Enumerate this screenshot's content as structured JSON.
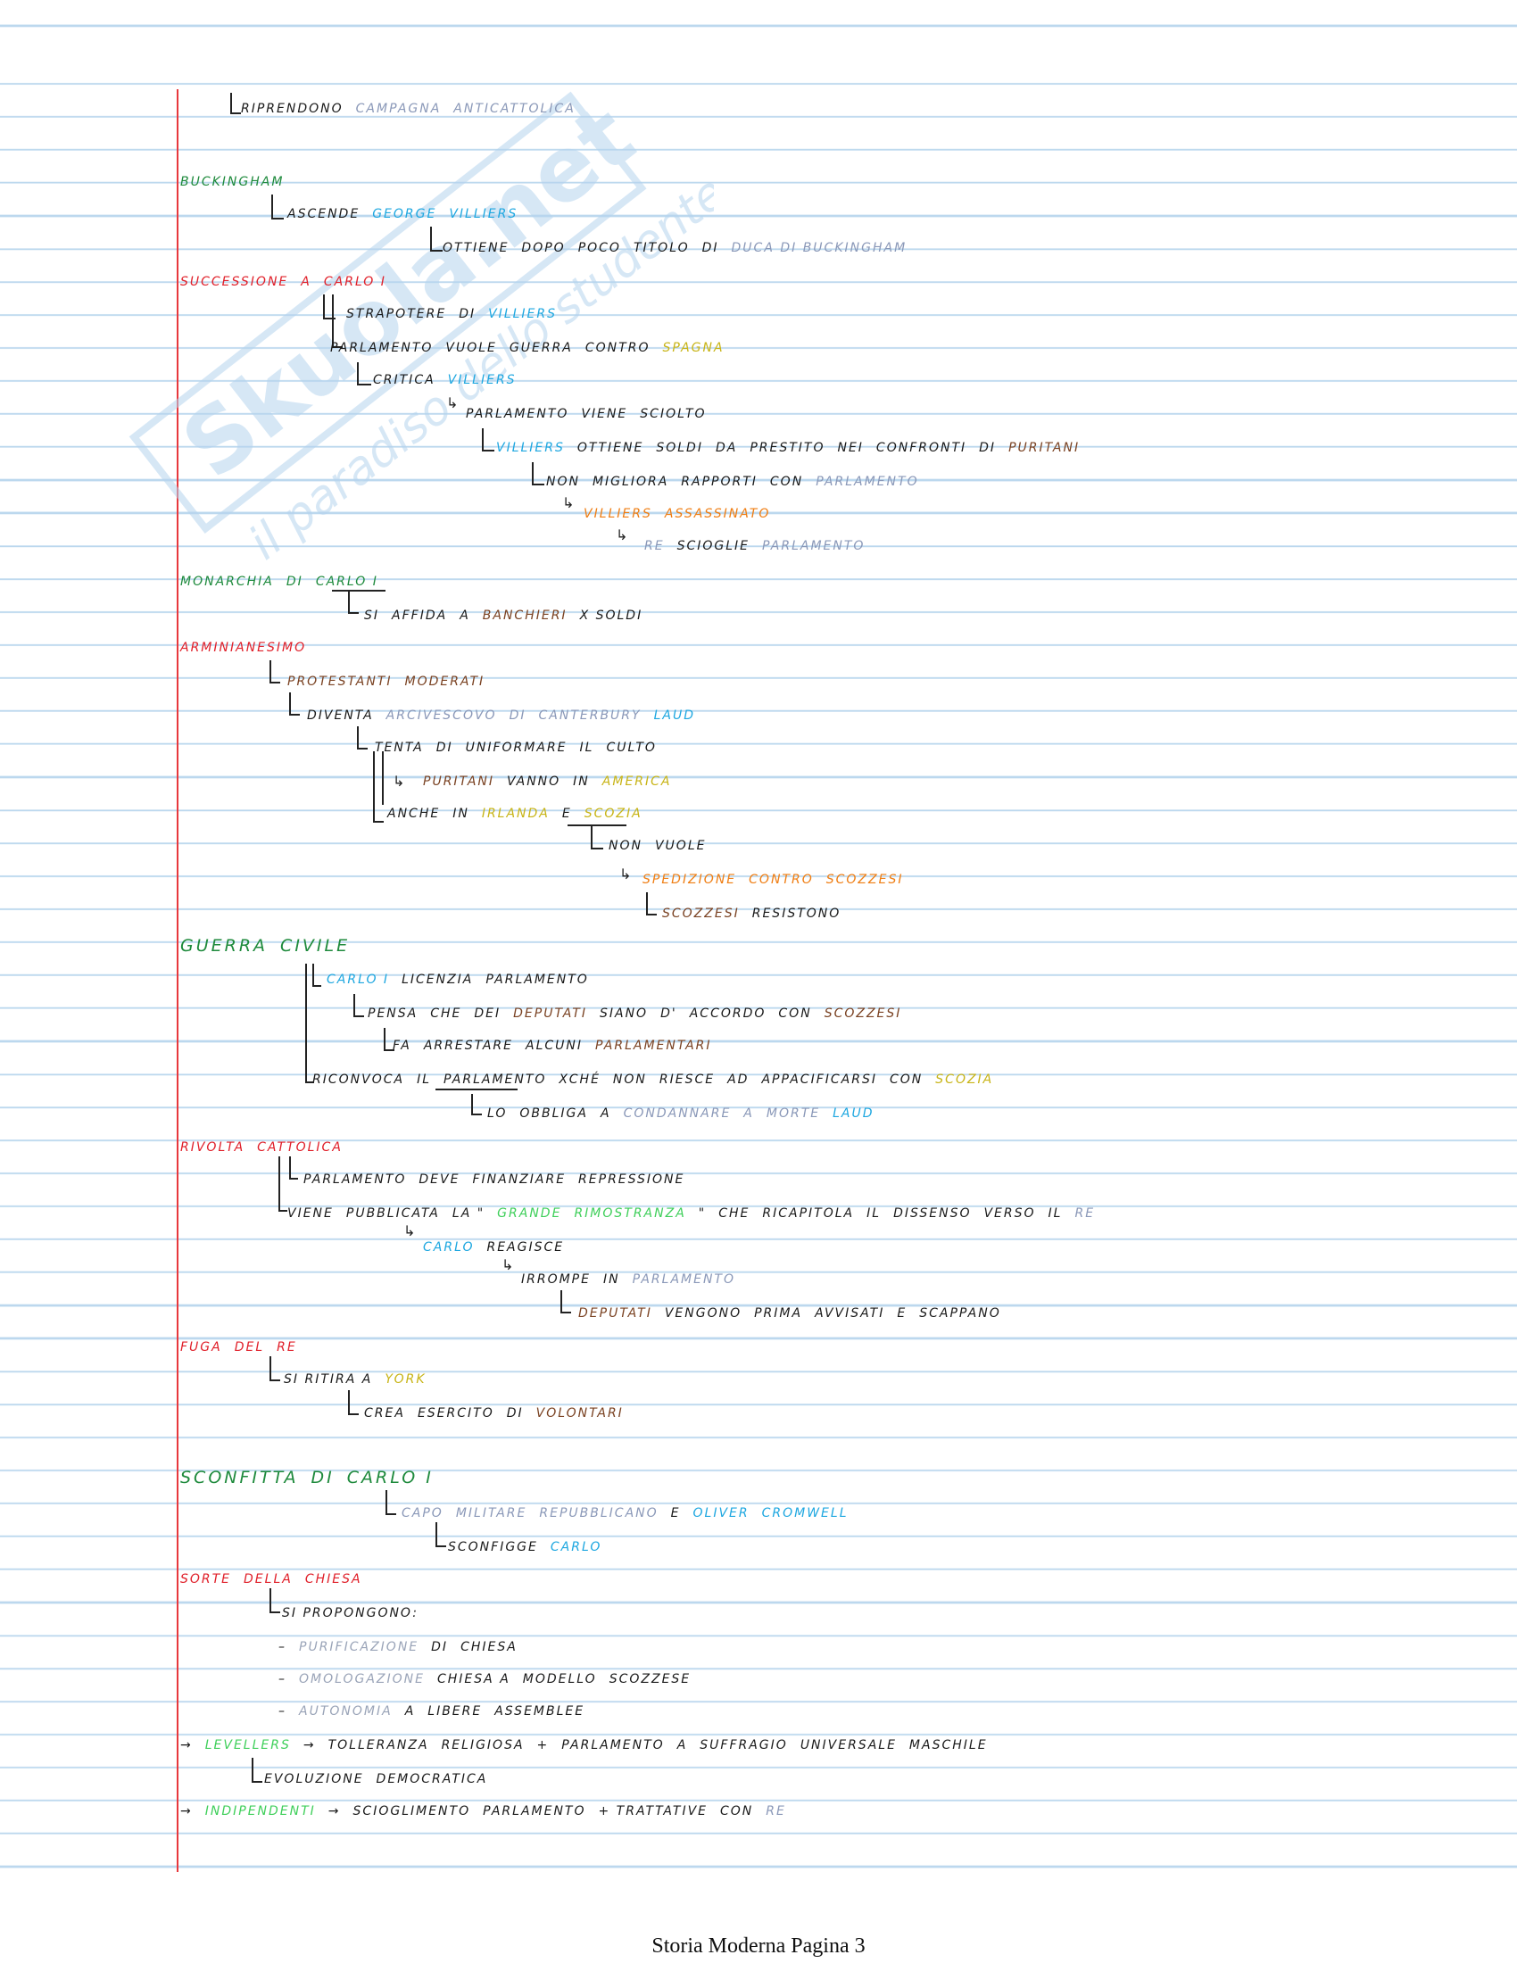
{
  "footer": {
    "text": "Storia Moderna Pagina 3"
  },
  "watermark": {
    "brand": "Skuola.net",
    "tagline": "il paradiso dello studente"
  },
  "colors": {
    "margin": "#e8383d",
    "rule": "#bcd8ee",
    "black": "#1a1a1a",
    "green": "#1e8a3c",
    "red": "#e0202a",
    "cyan": "#1ea7e0",
    "grey": "#8a98b8",
    "orange": "#ef7d12",
    "brown": "#7a4222",
    "yellow": "#c8b416",
    "lightgreen": "#3fcf5a",
    "darkgrey": "#9aa4b8",
    "watermark": "#b5d4ee"
  },
  "lines": [
    {
      "parts": [
        {
          "t": "RIPRENDONO",
          "c": "black"
        },
        {
          "t": "CAMPAGNA",
          "c": "grey"
        },
        {
          "t": "ANTICATTOLICA",
          "c": "grey"
        }
      ]
    },
    {
      "parts": [
        {
          "t": "BUCKINGHAM",
          "c": "green"
        }
      ]
    },
    {
      "parts": [
        {
          "t": "ASCENDE",
          "c": "black"
        },
        {
          "t": "GEORGE",
          "c": "cyan"
        },
        {
          "t": "VILLIERS",
          "c": "cyan"
        }
      ]
    },
    {
      "parts": [
        {
          "t": "OTTIENE",
          "c": "black"
        },
        {
          "t": "DOPO",
          "c": "black"
        },
        {
          "t": "POCO",
          "c": "black"
        },
        {
          "t": "TITOLO",
          "c": "black"
        },
        {
          "t": "DI",
          "c": "black"
        },
        {
          "t": "DUCA DI BUCKINGHAM",
          "c": "grey"
        }
      ]
    },
    {
      "parts": [
        {
          "t": "SUCCESSIONE",
          "c": "red"
        },
        {
          "t": "A",
          "c": "red"
        },
        {
          "t": "CARLO I",
          "c": "red"
        }
      ]
    },
    {
      "parts": [
        {
          "t": "STRAPOTERE",
          "c": "black"
        },
        {
          "t": "DI",
          "c": "black"
        },
        {
          "t": "VILLIERS",
          "c": "cyan"
        }
      ]
    },
    {
      "parts": [
        {
          "t": "PARLAMENTO",
          "c": "black"
        },
        {
          "t": "VUOLE",
          "c": "black"
        },
        {
          "t": "GUERRA",
          "c": "black"
        },
        {
          "t": "CONTRO",
          "c": "black"
        },
        {
          "t": "SPAGNA",
          "c": "yellow"
        }
      ]
    },
    {
      "parts": [
        {
          "t": "CRITICA",
          "c": "black"
        },
        {
          "t": "VILLIERS",
          "c": "cyan"
        }
      ]
    },
    {
      "parts": [
        {
          "t": "PARLAMENTO",
          "c": "black"
        },
        {
          "t": "VIENE",
          "c": "black"
        },
        {
          "t": "SCIOLTO",
          "c": "black"
        }
      ]
    },
    {
      "parts": [
        {
          "t": "VILLIERS",
          "c": "cyan"
        },
        {
          "t": "OTTIENE",
          "c": "black"
        },
        {
          "t": "SOLDI",
          "c": "black"
        },
        {
          "t": "DA",
          "c": "black"
        },
        {
          "t": "PRESTITO",
          "c": "black"
        },
        {
          "t": "NEI",
          "c": "black"
        },
        {
          "t": "CONFRONTI",
          "c": "black"
        },
        {
          "t": "DI",
          "c": "black"
        },
        {
          "t": "PURITANI",
          "c": "brown"
        }
      ]
    },
    {
      "parts": [
        {
          "t": "NON",
          "c": "black"
        },
        {
          "t": "MIGLIORA",
          "c": "black"
        },
        {
          "t": "RAPPORTI",
          "c": "black"
        },
        {
          "t": "CON",
          "c": "black"
        },
        {
          "t": "PARLAMENTO",
          "c": "grey"
        }
      ]
    },
    {
      "parts": [
        {
          "t": "VILLIERS",
          "c": "orange"
        },
        {
          "t": "ASSASSINATO",
          "c": "orange"
        }
      ]
    },
    {
      "parts": [
        {
          "t": "RE",
          "c": "grey"
        },
        {
          "t": "SCIOGLIE",
          "c": "black"
        },
        {
          "t": "PARLAMENTO",
          "c": "grey"
        }
      ]
    },
    {
      "parts": [
        {
          "t": "MONARCHIA",
          "c": "green"
        },
        {
          "t": "DI",
          "c": "green"
        },
        {
          "t": "CARLO I",
          "c": "green"
        }
      ]
    },
    {
      "parts": [
        {
          "t": "SI",
          "c": "black"
        },
        {
          "t": "AFFIDA",
          "c": "black"
        },
        {
          "t": "A",
          "c": "black"
        },
        {
          "t": "BANCHIERI",
          "c": "brown"
        },
        {
          "t": "X SOLDI",
          "c": "black"
        }
      ]
    },
    {
      "parts": [
        {
          "t": "ARMINIANESIMO",
          "c": "red"
        }
      ]
    },
    {
      "parts": [
        {
          "t": "PROTESTANTI",
          "c": "brown"
        },
        {
          "t": "MODERATI",
          "c": "brown"
        }
      ]
    },
    {
      "parts": [
        {
          "t": "DIVENTA",
          "c": "black"
        },
        {
          "t": "ARCIVESCOVO",
          "c": "grey"
        },
        {
          "t": "DI",
          "c": "grey"
        },
        {
          "t": "CANTERBURY",
          "c": "grey"
        },
        {
          "t": "LAUD",
          "c": "cyan"
        }
      ]
    },
    {
      "parts": [
        {
          "t": "TENTA",
          "c": "black"
        },
        {
          "t": "DI",
          "c": "black"
        },
        {
          "t": "UNIFORMARE",
          "c": "black"
        },
        {
          "t": "IL",
          "c": "black"
        },
        {
          "t": "CULTO",
          "c": "black"
        }
      ]
    },
    {
      "parts": [
        {
          "t": "PURITANI",
          "c": "brown"
        },
        {
          "t": "VANNO",
          "c": "black"
        },
        {
          "t": "IN",
          "c": "black"
        },
        {
          "t": "AMERICA",
          "c": "yellow"
        }
      ]
    },
    {
      "parts": [
        {
          "t": "ANCHE",
          "c": "black"
        },
        {
          "t": "IN",
          "c": "black"
        },
        {
          "t": "IRLANDA",
          "c": "yellow"
        },
        {
          "t": "E",
          "c": "black"
        },
        {
          "t": "SCOZIA",
          "c": "yellow"
        }
      ]
    },
    {
      "parts": [
        {
          "t": "NON",
          "c": "black"
        },
        {
          "t": "VUOLE",
          "c": "black"
        }
      ]
    },
    {
      "parts": [
        {
          "t": "SPEDIZIONE",
          "c": "orange"
        },
        {
          "t": "CONTRO",
          "c": "orange"
        },
        {
          "t": "SCOZZESI",
          "c": "orange"
        }
      ]
    },
    {
      "parts": [
        {
          "t": "SCOZZESI",
          "c": "brown"
        },
        {
          "t": "RESISTONO",
          "c": "black"
        }
      ]
    },
    {
      "parts": [
        {
          "t": "GUERRA",
          "c": "green"
        },
        {
          "t": "CIVILE",
          "c": "green"
        }
      ]
    },
    {
      "parts": [
        {
          "t": "CARLO I",
          "c": "cyan"
        },
        {
          "t": "LICENZIA",
          "c": "black"
        },
        {
          "t": "PARLAMENTO",
          "c": "black"
        }
      ]
    },
    {
      "parts": [
        {
          "t": "PENSA",
          "c": "black"
        },
        {
          "t": "CHE",
          "c": "black"
        },
        {
          "t": "DEI",
          "c": "black"
        },
        {
          "t": "DEPUTATI",
          "c": "brown"
        },
        {
          "t": "SIANO",
          "c": "black"
        },
        {
          "t": "D'",
          "c": "black"
        },
        {
          "t": "ACCORDO",
          "c": "black"
        },
        {
          "t": "CON",
          "c": "black"
        },
        {
          "t": "SCOZZESI",
          "c": "brown"
        }
      ]
    },
    {
      "parts": [
        {
          "t": "FA",
          "c": "black"
        },
        {
          "t": "ARRESTARE",
          "c": "black"
        },
        {
          "t": "ALCUNI",
          "c": "black"
        },
        {
          "t": "PARLAMENTARI",
          "c": "brown"
        }
      ]
    },
    {
      "parts": [
        {
          "t": "RICONVOCA",
          "c": "black"
        },
        {
          "t": "IL",
          "c": "black"
        },
        {
          "t": "PARLAMENTO",
          "c": "black"
        },
        {
          "t": "XCHÉ",
          "c": "black"
        },
        {
          "t": "NON",
          "c": "black"
        },
        {
          "t": "RIESCE",
          "c": "black"
        },
        {
          "t": "AD",
          "c": "black"
        },
        {
          "t": "APPACIFICARSI",
          "c": "black"
        },
        {
          "t": "CON",
          "c": "black"
        },
        {
          "t": "SCOZIA",
          "c": "yellow"
        }
      ]
    },
    {
      "parts": [
        {
          "t": "LO",
          "c": "black"
        },
        {
          "t": "OBBLIGA",
          "c": "black"
        },
        {
          "t": "A",
          "c": "black"
        },
        {
          "t": "CONDANNARE",
          "c": "grey"
        },
        {
          "t": "A",
          "c": "grey"
        },
        {
          "t": "MORTE",
          "c": "grey"
        },
        {
          "t": "LAUD",
          "c": "cyan"
        }
      ]
    },
    {
      "parts": [
        {
          "t": "RIVOLTA",
          "c": "red"
        },
        {
          "t": "CATTOLICA",
          "c": "red"
        }
      ]
    },
    {
      "parts": [
        {
          "t": "PARLAMENTO",
          "c": "black"
        },
        {
          "t": "DEVE",
          "c": "black"
        },
        {
          "t": "FINANZIARE",
          "c": "black"
        },
        {
          "t": "REPRESSIONE",
          "c": "black"
        }
      ]
    },
    {
      "parts": [
        {
          "t": "VIENE",
          "c": "black"
        },
        {
          "t": "PUBBLICATA",
          "c": "black"
        },
        {
          "t": "LA \"",
          "c": "black"
        },
        {
          "t": "GRANDE",
          "c": "lightgreen"
        },
        {
          "t": "RIMOSTRANZA",
          "c": "lightgreen"
        },
        {
          "t": "\"",
          "c": "black"
        },
        {
          "t": "CHE",
          "c": "black"
        },
        {
          "t": "RICAPITOLA",
          "c": "black"
        },
        {
          "t": "IL",
          "c": "black"
        },
        {
          "t": "DISSENSO",
          "c": "black"
        },
        {
          "t": "VERSO",
          "c": "black"
        },
        {
          "t": "IL",
          "c": "black"
        },
        {
          "t": "RE",
          "c": "grey"
        }
      ]
    },
    {
      "parts": [
        {
          "t": "CARLO",
          "c": "cyan"
        },
        {
          "t": "REAGISCE",
          "c": "black"
        }
      ]
    },
    {
      "parts": [
        {
          "t": "IRROMPE",
          "c": "black"
        },
        {
          "t": "IN",
          "c": "black"
        },
        {
          "t": "PARLAMENTO",
          "c": "grey"
        }
      ]
    },
    {
      "parts": [
        {
          "t": "DEPUTATI",
          "c": "brown"
        },
        {
          "t": "VENGONO",
          "c": "black"
        },
        {
          "t": "PRIMA",
          "c": "black"
        },
        {
          "t": "AVVISATI",
          "c": "black"
        },
        {
          "t": "E",
          "c": "black"
        },
        {
          "t": "SCAPPANO",
          "c": "black"
        }
      ]
    },
    {
      "parts": [
        {
          "t": "FUGA",
          "c": "red"
        },
        {
          "t": "DEL",
          "c": "red"
        },
        {
          "t": "RE",
          "c": "red"
        }
      ]
    },
    {
      "parts": [
        {
          "t": "SI RITIRA A",
          "c": "black"
        },
        {
          "t": "YORK",
          "c": "yellow"
        }
      ]
    },
    {
      "parts": [
        {
          "t": "CREA",
          "c": "black"
        },
        {
          "t": "ESERCITO",
          "c": "black"
        },
        {
          "t": "DI",
          "c": "black"
        },
        {
          "t": "VOLONTARI",
          "c": "brown"
        }
      ]
    },
    {
      "parts": [
        {
          "t": "SCONFITTA",
          "c": "green"
        },
        {
          "t": "DI",
          "c": "green"
        },
        {
          "t": "CARLO I",
          "c": "green"
        }
      ]
    },
    {
      "parts": [
        {
          "t": "CAPO",
          "c": "grey"
        },
        {
          "t": "MILITARE",
          "c": "grey"
        },
        {
          "t": "REPUBBLICANO",
          "c": "grey"
        },
        {
          "t": "E",
          "c": "black"
        },
        {
          "t": "OLIVER",
          "c": "cyan"
        },
        {
          "t": "CROMWELL",
          "c": "cyan"
        }
      ]
    },
    {
      "parts": [
        {
          "t": "SCONFIGGE",
          "c": "black"
        },
        {
          "t": "CARLO",
          "c": "cyan"
        }
      ]
    },
    {
      "parts": [
        {
          "t": "SORTE",
          "c": "red"
        },
        {
          "t": "DELLA",
          "c": "red"
        },
        {
          "t": "CHIESA",
          "c": "red"
        }
      ]
    },
    {
      "parts": [
        {
          "t": "SI PROPONGONO:",
          "c": "black"
        }
      ]
    },
    {
      "parts": [
        {
          "t": "–",
          "c": "black"
        },
        {
          "t": "PURIFICAZIONE",
          "c": "darkgrey"
        },
        {
          "t": "DI",
          "c": "black"
        },
        {
          "t": "CHIESA",
          "c": "black"
        }
      ]
    },
    {
      "parts": [
        {
          "t": "–",
          "c": "black"
        },
        {
          "t": "OMOLOGAZIONE",
          "c": "darkgrey"
        },
        {
          "t": "CHIESA A",
          "c": "black"
        },
        {
          "t": "MODELLO",
          "c": "black"
        },
        {
          "t": "SCOZZESE",
          "c": "black"
        }
      ]
    },
    {
      "parts": [
        {
          "t": "–",
          "c": "black"
        },
        {
          "t": "AUTONOMIA",
          "c": "darkgrey"
        },
        {
          "t": "A",
          "c": "black"
        },
        {
          "t": "LIBERE",
          "c": "black"
        },
        {
          "t": "ASSEMBLEE",
          "c": "black"
        }
      ]
    },
    {
      "parts": [
        {
          "t": "→",
          "c": "black"
        },
        {
          "t": "LEVELLERS",
          "c": "lightgreen"
        },
        {
          "t": "→",
          "c": "black"
        },
        {
          "t": "TOLLERANZA",
          "c": "black"
        },
        {
          "t": "RELIGIOSA",
          "c": "black"
        },
        {
          "t": "+",
          "c": "black"
        },
        {
          "t": "PARLAMENTO",
          "c": "black"
        },
        {
          "t": "A",
          "c": "black"
        },
        {
          "t": "SUFFRAGIO",
          "c": "black"
        },
        {
          "t": "UNIVERSALE",
          "c": "black"
        },
        {
          "t": "MASCHILE",
          "c": "black"
        }
      ]
    },
    {
      "parts": [
        {
          "t": "EVOLUZIONE",
          "c": "black"
        },
        {
          "t": "DEMOCRATICA",
          "c": "black"
        }
      ]
    },
    {
      "parts": [
        {
          "t": "→",
          "c": "black"
        },
        {
          "t": "INDIPENDENTI",
          "c": "lightgreen"
        },
        {
          "t": "→",
          "c": "black"
        },
        {
          "t": "SCIOGLIMENTO",
          "c": "black"
        },
        {
          "t": "PARLAMENTO",
          "c": "black"
        },
        {
          "t": "+ TRATTATIVE",
          "c": "black"
        },
        {
          "t": "CON",
          "c": "black"
        },
        {
          "t": "RE",
          "c": "grey"
        }
      ]
    }
  ]
}
